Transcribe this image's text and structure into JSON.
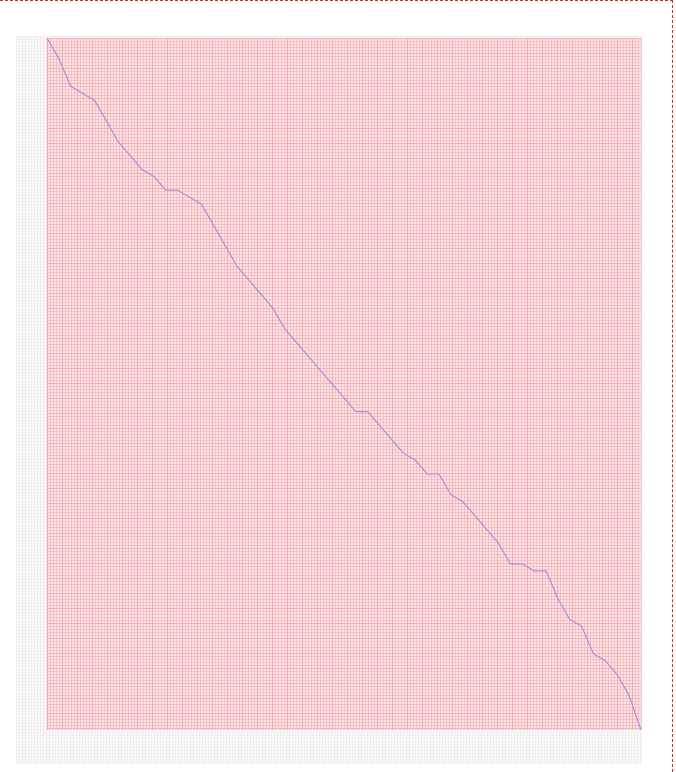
{
  "colors": {
    "page_background": "#ffffff",
    "frame_border": "#e2231a",
    "outer_grid_line": "#e6e6e6",
    "inner_background": "#fbe3e6",
    "inner_grid_line": "#f2a4aa",
    "series_line": "#9f8fd6"
  },
  "chart_data": {
    "type": "line",
    "title": "",
    "xlabel": "",
    "ylabel": "",
    "grid": true,
    "legend": "none",
    "xlim": [
      0,
      100
    ],
    "ylim": [
      0,
      100
    ],
    "series": [
      {
        "x": [
          0,
          2,
          4,
          6,
          8,
          10,
          12,
          14,
          16,
          18,
          20,
          22,
          24,
          26,
          28,
          30,
          32,
          34,
          36,
          38,
          40,
          42,
          44,
          46,
          48,
          50,
          52,
          54,
          56,
          58,
          60,
          62,
          64,
          66,
          68,
          70,
          72,
          74,
          76,
          78,
          80,
          82,
          84,
          86,
          88,
          90,
          92,
          94,
          96,
          98,
          100
        ],
        "y": [
          100,
          97,
          93,
          92,
          91,
          88,
          85,
          83,
          81,
          80,
          78,
          78,
          77,
          76,
          73,
          70,
          67,
          65,
          63,
          61,
          58,
          56,
          54,
          52,
          50,
          48,
          46,
          46,
          44,
          42,
          40,
          39,
          37,
          37,
          34,
          33,
          31,
          29,
          27,
          24,
          24,
          23,
          23,
          19,
          16,
          15,
          11,
          10,
          8,
          5,
          0
        ]
      }
    ]
  }
}
